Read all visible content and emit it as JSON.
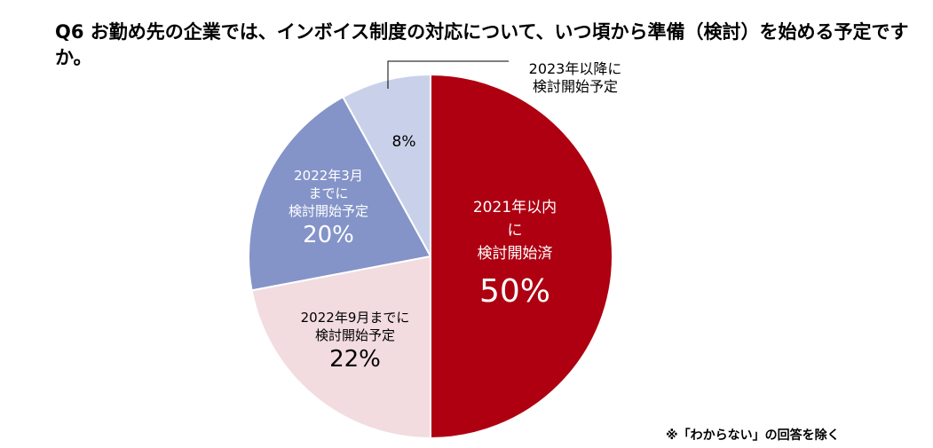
{
  "chart_data": {
    "type": "pie",
    "title": "Q6  お勤め先の企業では、インボイス制度の対応について、いつ頃から準備（検討）を始める予定ですか。",
    "slices": [
      {
        "label": "2021年以内に検討開始済",
        "label_lines": [
          "2021年以内",
          "に",
          "検討開始済"
        ],
        "value": 50,
        "pct_label": "50%",
        "color": "#ae0011",
        "text_color": "#ffffff"
      },
      {
        "label": "2022年9月までに検討開始予定",
        "label_lines": [
          "2022年9月までに",
          "検討開始予定"
        ],
        "value": 22,
        "pct_label": "22%",
        "color": "#f2dce0",
        "text_color": "#000000"
      },
      {
        "label": "2022年3月までに検討開始予定",
        "label_lines": [
          "2022年3月",
          "までに",
          "検討開始予定"
        ],
        "value": 20,
        "pct_label": "20%",
        "color": "#8494c8",
        "text_color": "#ffffff"
      },
      {
        "label": "2023年以降に検討開始予定",
        "label_lines": [
          "2023年以降に",
          "検討開始予定"
        ],
        "value": 8,
        "pct_label": "8%",
        "color": "#c9d1ea",
        "text_color": "#000000"
      }
    ],
    "start_angle": "12 o'clock",
    "direction": "clockwise",
    "note": "※「わからない」の回答を除く"
  }
}
